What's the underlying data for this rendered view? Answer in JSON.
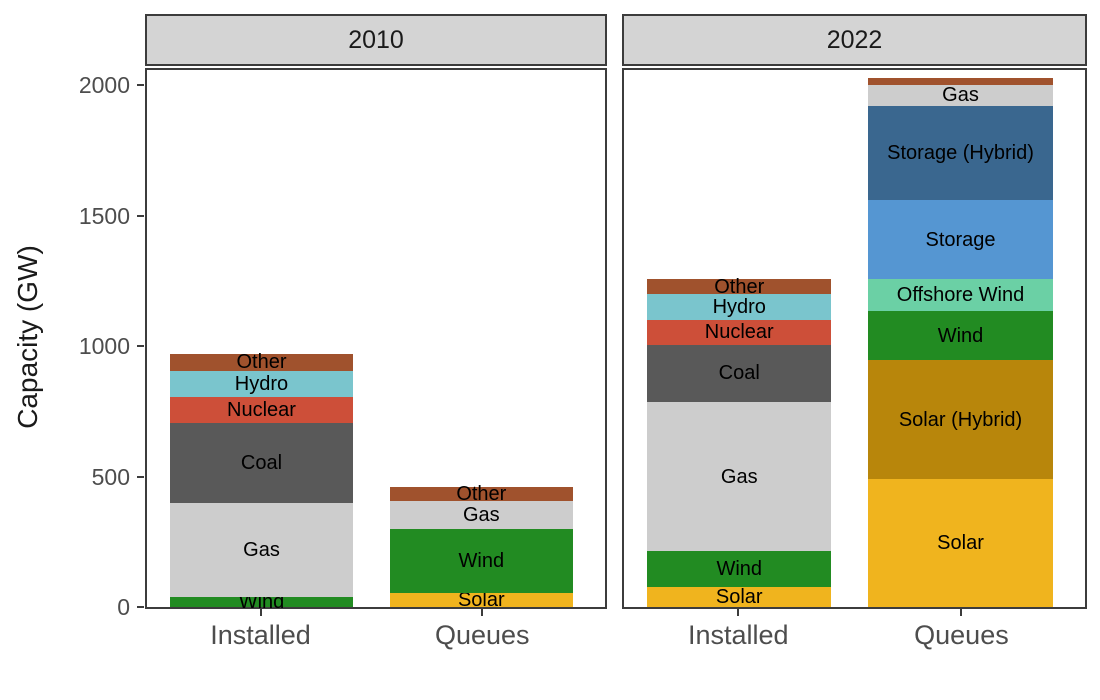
{
  "chart_data": {
    "type": "bar",
    "stacked": true,
    "title": "",
    "ylabel": "Capacity (GW)",
    "ylim": [
      0,
      2065
    ],
    "yticks": [
      0,
      500,
      1000,
      1500,
      2000
    ],
    "x_tick_labels": [
      "Installed",
      "Queues"
    ],
    "grid": false,
    "legend": "none (segments labeled in-bar)",
    "facets": [
      {
        "label": "2010",
        "bars": [
          {
            "category": "Installed",
            "total": 970,
            "segments": [
              {
                "name": "Wind",
                "value": 40,
                "show_label": true
              },
              {
                "name": "Gas",
                "value": 360,
                "show_label": true
              },
              {
                "name": "Coal",
                "value": 305,
                "show_label": true
              },
              {
                "name": "Nuclear",
                "value": 100,
                "show_label": true
              },
              {
                "name": "Hydro",
                "value": 100,
                "show_label": true
              },
              {
                "name": "Other",
                "value": 65,
                "show_label": true
              }
            ]
          },
          {
            "category": "Queues",
            "total": 460,
            "segments": [
              {
                "name": "Solar",
                "value": 55,
                "show_label": true
              },
              {
                "name": "Wind",
                "value": 245,
                "show_label": true
              },
              {
                "name": "Gas",
                "value": 105,
                "show_label": true
              },
              {
                "name": "Other",
                "value": 55,
                "show_label": true
              }
            ]
          }
        ]
      },
      {
        "label": "2022",
        "bars": [
          {
            "category": "Installed",
            "total": 1255,
            "segments": [
              {
                "name": "Solar",
                "value": 75,
                "show_label": true
              },
              {
                "name": "Wind",
                "value": 140,
                "show_label": true
              },
              {
                "name": "Gas",
                "value": 570,
                "show_label": true
              },
              {
                "name": "Coal",
                "value": 220,
                "show_label": true
              },
              {
                "name": "Nuclear",
                "value": 95,
                "show_label": true
              },
              {
                "name": "Hydro",
                "value": 100,
                "show_label": true
              },
              {
                "name": "Other",
                "value": 55,
                "show_label": true
              }
            ]
          },
          {
            "category": "Queues",
            "total": 2025,
            "segments": [
              {
                "name": "Solar",
                "value": 490,
                "show_label": true
              },
              {
                "name": "Solar (Hybrid)",
                "value": 455,
                "show_label": true
              },
              {
                "name": "Wind",
                "value": 190,
                "show_label": true
              },
              {
                "name": "Offshore Wind",
                "value": 120,
                "show_label": true
              },
              {
                "name": "Storage",
                "value": 305,
                "show_label": true
              },
              {
                "name": "Storage (Hybrid)",
                "value": 360,
                "show_label": true
              },
              {
                "name": "Gas",
                "value": 80,
                "show_label": true
              },
              {
                "name": "Other",
                "value": 25,
                "show_label": false
              }
            ]
          }
        ]
      }
    ],
    "segment_colors": {
      "Solar": "#F0B41E",
      "Solar (Hybrid)": "#B8860B",
      "Wind": "#228B22",
      "Offshore Wind": "#6BD0A5",
      "Storage": "#5596D2",
      "Storage (Hybrid)": "#3A678F",
      "Gas": "#CDCDCD",
      "Coal": "#595959",
      "Nuclear": "#CD4F39",
      "Hydro": "#7AC5CD",
      "Other": "#A0522D"
    },
    "style_colors": {
      "strip_background": "#D4D4D4",
      "panel_border": "#3C3C3C",
      "axis_text": "#4D4D4D",
      "strip_text": "#1A1A1A",
      "segment_label_text": "#000000"
    }
  }
}
